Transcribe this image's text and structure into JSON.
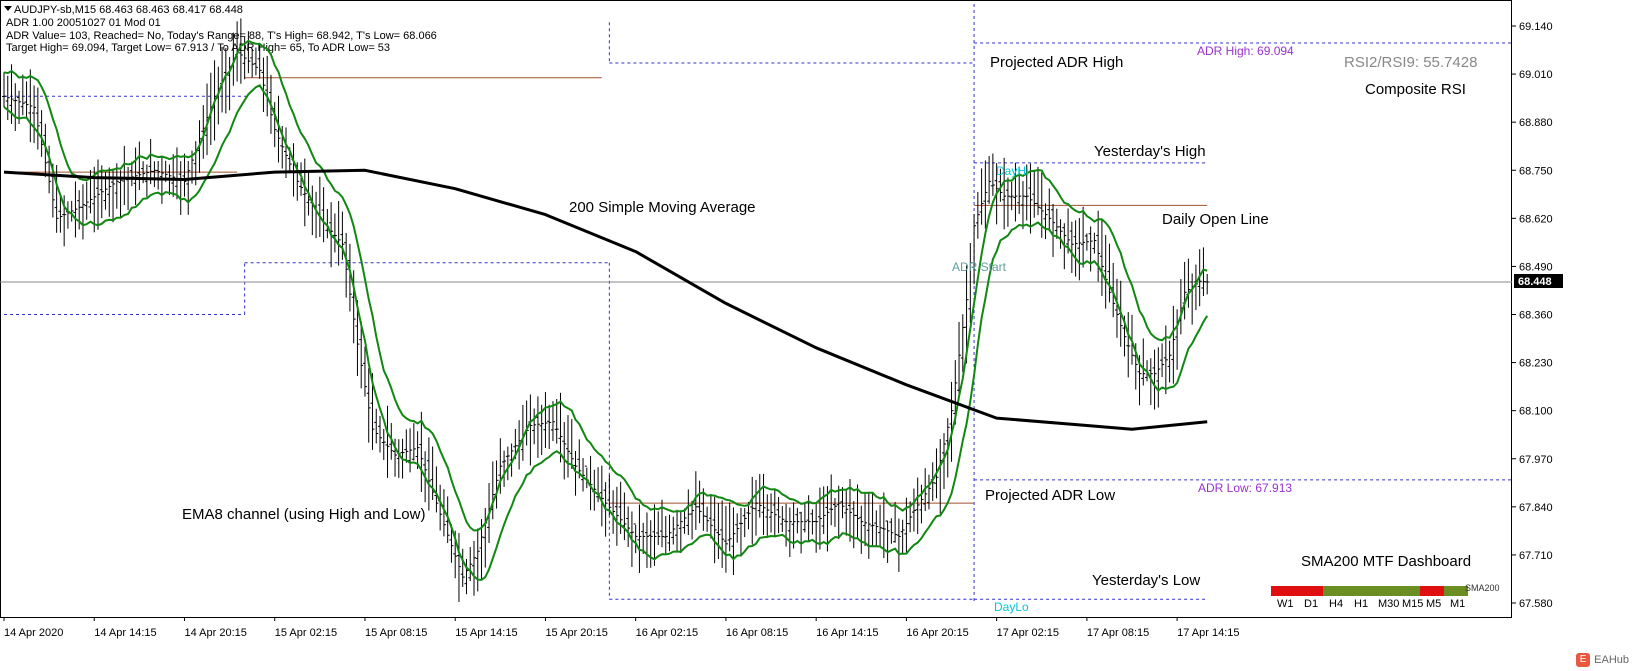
{
  "header": {
    "symbol_line": "AUDJPY-sb,M15  68.463 68.463 68.417 68.448",
    "adr_line": "ADR 1.00 20051027 01 Mod 01",
    "adr_value_line": "ADR Value= 103, Reached= No, Today's Range= 88, T's High= 68.942, T's Low= 68.066",
    "target_line": "Target High= 69.094, Target Low= 67.913 /  To ADR High= 65, To ADR Low= 53"
  },
  "annotations": {
    "projected_adr_high": "Projected ADR High",
    "projected_adr_low": "Projected ADR Low",
    "yesterdays_high": "Yesterday's High",
    "yesterdays_low": "Yesterday's Low",
    "daily_open_line": "Daily Open Line",
    "sma200": "200 Simple Moving Average",
    "ema8": "EMA8 channel (using High and Low)",
    "composite_rsi": "Composite RSI",
    "rsi_value": "RSI2/RSI9: 55.7428",
    "adr_high_tag": "ADR High: 69.094",
    "adr_low_tag": "ADR Low: 67.913",
    "adr_start": "ADR Start",
    "day_hi": "DayHi",
    "day_lo": "DayLo",
    "dashboard_title": "SMA200 MTF Dashboard",
    "dashboard_tag": "SMA200"
  },
  "dashboard": {
    "labels": [
      "W1",
      "D1",
      "H4",
      "H1",
      "M30",
      "M15",
      "M5",
      "M1"
    ],
    "colors": [
      "#e01010",
      "#e01010",
      "#6b8e23",
      "#6b8e23",
      "#6b8e23",
      "#6b8e23",
      "#e01010",
      "#6b8e23"
    ]
  },
  "watermark": {
    "label": "EAHub"
  },
  "colors": {
    "candle": "#000000",
    "ema": "#118811",
    "sma": "#000000",
    "dashed": "#3333cc",
    "adr_tag": "#9932cc",
    "open_line": "#a0522d",
    "cyan_tag": "#00c8d7",
    "price_tag_bg": "#000000"
  },
  "chart_data": {
    "type": "line",
    "title": "AUDJPY-sb,M15",
    "y_ticks": [
      69.14,
      69.01,
      68.88,
      68.75,
      68.62,
      68.49,
      68.36,
      68.23,
      68.1,
      67.97,
      67.84,
      67.71,
      67.58
    ],
    "y_tick_labels": [
      "69.140",
      "69.010",
      "68.880",
      "68.750",
      "68.620",
      "68.490",
      "68.360",
      "68.230",
      "68.100",
      "67.970",
      "67.840",
      "67.710",
      "67.580"
    ],
    "x_tick_labels": [
      "14 Apr 2020",
      "14 Apr 14:15",
      "14 Apr 20:15",
      "15 Apr 02:15",
      "15 Apr 08:15",
      "15 Apr 14:15",
      "15 Apr 20:15",
      "16 Apr 02:15",
      "16 Apr 08:15",
      "16 Apr 14:15",
      "16 Apr 20:15",
      "17 Apr 02:15",
      "17 Apr 08:15",
      "17 Apr 14:15"
    ],
    "bars_per_tick": 24,
    "last_price": 68.448,
    "last_price_label": "68.448",
    "levels": {
      "adr_high": 69.094,
      "adr_low": 67.913,
      "yesterdays_high": 68.77,
      "yesterdays_low": 67.59,
      "daily_open": 68.655,
      "prior_daily_open": 69.0,
      "prior_daily_open_2": 68.745,
      "prior_daily_open_3": 67.85
    },
    "close_path": [
      {
        "bar": 0,
        "close": 68.95
      },
      {
        "bar": 8,
        "close": 68.92
      },
      {
        "bar": 14,
        "close": 68.62
      },
      {
        "bar": 20,
        "close": 68.65
      },
      {
        "bar": 30,
        "close": 68.72
      },
      {
        "bar": 40,
        "close": 68.75
      },
      {
        "bar": 48,
        "close": 68.72
      },
      {
        "bar": 56,
        "close": 68.95
      },
      {
        "bar": 62,
        "close": 69.07
      },
      {
        "bar": 68,
        "close": 69.02
      },
      {
        "bar": 72,
        "close": 68.86
      },
      {
        "bar": 78,
        "close": 68.72
      },
      {
        "bar": 84,
        "close": 68.62
      },
      {
        "bar": 90,
        "close": 68.55
      },
      {
        "bar": 94,
        "close": 68.28
      },
      {
        "bar": 98,
        "close": 68.05
      },
      {
        "bar": 104,
        "close": 67.98
      },
      {
        "bar": 110,
        "close": 68.0
      },
      {
        "bar": 116,
        "close": 67.82
      },
      {
        "bar": 122,
        "close": 67.65
      },
      {
        "bar": 126,
        "close": 67.72
      },
      {
        "bar": 132,
        "close": 67.95
      },
      {
        "bar": 140,
        "close": 68.06
      },
      {
        "bar": 146,
        "close": 68.07
      },
      {
        "bar": 152,
        "close": 67.95
      },
      {
        "bar": 160,
        "close": 67.85
      },
      {
        "bar": 168,
        "close": 67.76
      },
      {
        "bar": 176,
        "close": 67.76
      },
      {
        "bar": 184,
        "close": 67.84
      },
      {
        "bar": 192,
        "close": 67.74
      },
      {
        "bar": 200,
        "close": 67.85
      },
      {
        "bar": 208,
        "close": 67.8
      },
      {
        "bar": 216,
        "close": 67.8
      },
      {
        "bar": 222,
        "close": 67.85
      },
      {
        "bar": 228,
        "close": 67.8
      },
      {
        "bar": 234,
        "close": 67.78
      },
      {
        "bar": 238,
        "close": 67.76
      },
      {
        "bar": 242,
        "close": 67.83
      },
      {
        "bar": 248,
        "close": 67.92
      },
      {
        "bar": 252,
        "close": 68.1
      },
      {
        "bar": 256,
        "close": 68.4
      },
      {
        "bar": 258,
        "close": 68.6
      },
      {
        "bar": 262,
        "close": 68.72
      },
      {
        "bar": 266,
        "close": 68.68
      },
      {
        "bar": 272,
        "close": 68.68
      },
      {
        "bar": 278,
        "close": 68.62
      },
      {
        "bar": 284,
        "close": 68.55
      },
      {
        "bar": 290,
        "close": 68.56
      },
      {
        "bar": 294,
        "close": 68.42
      },
      {
        "bar": 298,
        "close": 68.3
      },
      {
        "bar": 302,
        "close": 68.2
      },
      {
        "bar": 306,
        "close": 68.2
      },
      {
        "bar": 310,
        "close": 68.25
      },
      {
        "bar": 314,
        "close": 68.42
      },
      {
        "bar": 318,
        "close": 68.45
      },
      {
        "bar": 320,
        "close": 68.448
      }
    ],
    "sma200_path": [
      {
        "bar": 0,
        "value": 68.745
      },
      {
        "bar": 24,
        "value": 68.73
      },
      {
        "bar": 48,
        "value": 68.725
      },
      {
        "bar": 72,
        "value": 68.745
      },
      {
        "bar": 96,
        "value": 68.75
      },
      {
        "bar": 120,
        "value": 68.7
      },
      {
        "bar": 144,
        "value": 68.63
      },
      {
        "bar": 168,
        "value": 68.53
      },
      {
        "bar": 192,
        "value": 68.39
      },
      {
        "bar": 216,
        "value": 68.27
      },
      {
        "bar": 240,
        "value": 68.17
      },
      {
        "bar": 264,
        "value": 68.08
      },
      {
        "bar": 288,
        "value": 68.06
      },
      {
        "bar": 300,
        "value": 68.05
      },
      {
        "bar": 320,
        "value": 68.07
      }
    ]
  }
}
